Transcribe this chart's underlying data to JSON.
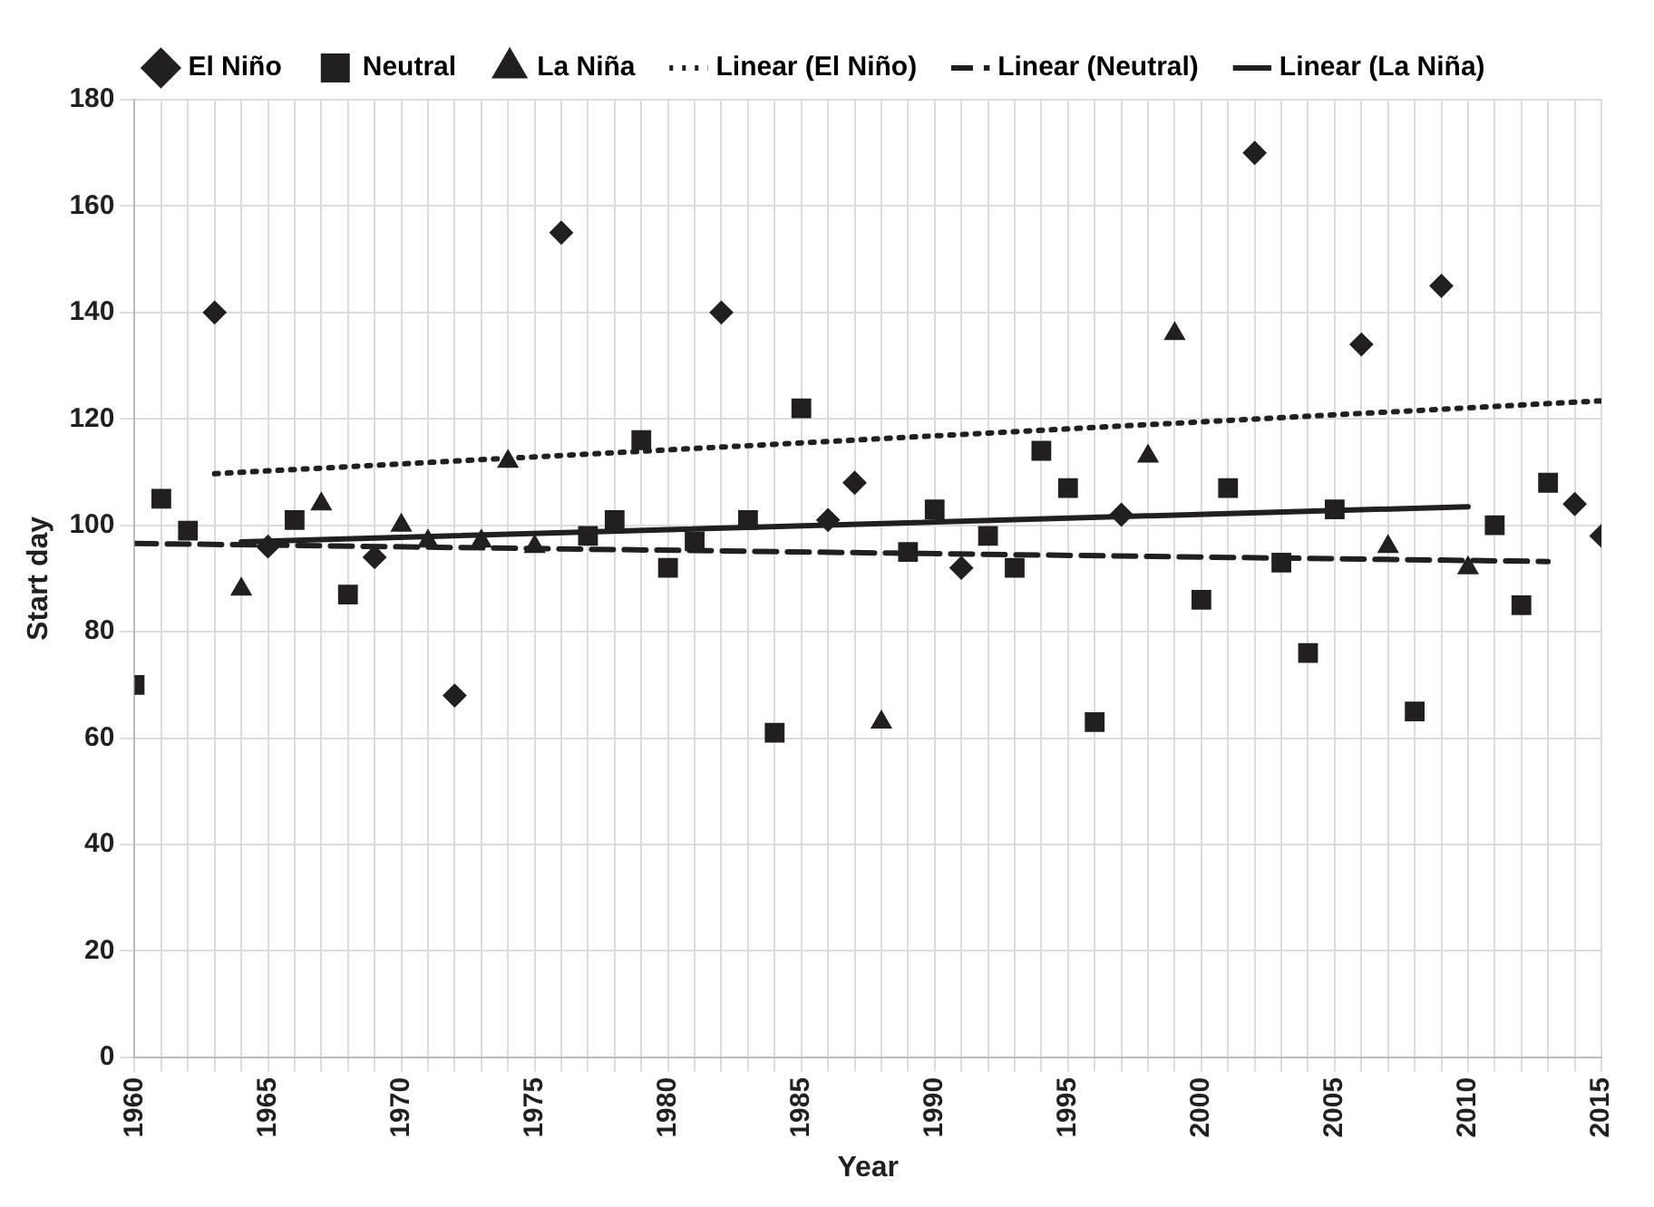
{
  "chart_data": {
    "type": "scatter",
    "xlabel": "Year",
    "ylabel": "Start day",
    "legend": "top",
    "grid": true,
    "xlim": [
      1960,
      2015
    ],
    "ylim": [
      0,
      180
    ],
    "yticks": [
      0,
      20,
      40,
      60,
      80,
      100,
      120,
      140,
      160,
      180
    ],
    "xticks": [
      1960,
      {
        "value": 1961,
        "label": null
      },
      {
        "value": 1962,
        "label": null
      },
      {
        "value": 1963,
        "label": null
      },
      {
        "value": 1964,
        "label": null
      },
      1965,
      {
        "value": 1966,
        "label": null
      },
      {
        "value": 1967,
        "label": null
      },
      {
        "value": 1968,
        "label": null
      },
      {
        "value": 1969,
        "label": null
      },
      1970,
      {
        "value": 1971,
        "label": null
      },
      {
        "value": 1972,
        "label": null
      },
      {
        "value": 1973,
        "label": null
      },
      {
        "value": 1974,
        "label": null
      },
      1975,
      {
        "value": 1976,
        "label": null
      },
      {
        "value": 1977,
        "label": null
      },
      {
        "value": 1978,
        "label": null
      },
      {
        "value": 1979,
        "label": null
      },
      1980,
      {
        "value": 1981,
        "label": null
      },
      {
        "value": 1982,
        "label": null
      },
      {
        "value": 1983,
        "label": null
      },
      {
        "value": 1984,
        "label": null
      },
      1985,
      {
        "value": 1986,
        "label": null
      },
      {
        "value": 1987,
        "label": null
      },
      {
        "value": 1988,
        "label": null
      },
      {
        "value": 1989,
        "label": null
      },
      1990,
      {
        "value": 1991,
        "label": null
      },
      {
        "value": 1992,
        "label": null
      },
      {
        "value": 1993,
        "label": null
      },
      {
        "value": 1994,
        "label": null
      },
      1995,
      {
        "value": 1996,
        "label": null
      },
      {
        "value": 1997,
        "label": null
      },
      {
        "value": 1998,
        "label": null
      },
      {
        "value": 1999,
        "label": null
      },
      2000,
      {
        "value": 2001,
        "label": null
      },
      {
        "value": 2002,
        "label": null
      },
      {
        "value": 2003,
        "label": null
      },
      {
        "value": 2004,
        "label": null
      },
      2005,
      {
        "value": 2006,
        "label": null
      },
      {
        "value": 2007,
        "label": null
      },
      {
        "value": 2008,
        "label": null
      },
      {
        "value": 2009,
        "label": null
      },
      2010,
      {
        "value": 2011,
        "label": null
      },
      {
        "value": 2012,
        "label": null
      },
      {
        "value": 2013,
        "label": null
      },
      {
        "value": 2014,
        "label": null
      },
      2015
    ],
    "series": [
      {
        "name": "El Niño",
        "type": "scatter",
        "marker": "diamond",
        "color": "#231f20",
        "x": [
          1963,
          1965,
          1969,
          1972,
          1976,
          1982,
          1986,
          1987,
          1991,
          1997,
          2002,
          2006,
          2009,
          2014,
          2015
        ],
        "values": [
          140,
          96,
          94,
          68,
          155,
          140,
          101,
          108,
          92,
          102,
          170,
          134,
          145,
          104,
          98
        ]
      },
      {
        "name": "Neutral",
        "type": "scatter",
        "marker": "square",
        "color": "#231f20",
        "x": [
          1960,
          1961,
          1962,
          1966,
          1968,
          1977,
          1978,
          1979,
          1980,
          1981,
          1983,
          1984,
          1985,
          1989,
          1990,
          1992,
          1993,
          1994,
          1995,
          1996,
          2000,
          2001,
          2003,
          2004,
          2005,
          2008,
          2011,
          2012,
          2013
        ],
        "values": [
          70,
          105,
          99,
          101,
          87,
          98,
          101,
          116,
          92,
          97,
          101,
          61,
          122,
          95,
          103,
          98,
          92,
          114,
          107,
          63,
          86,
          107,
          93,
          76,
          103,
          65,
          100,
          85,
          108
        ]
      },
      {
        "name": "La Niña",
        "type": "scatter",
        "marker": "triangle",
        "color": "#231f20",
        "x": [
          1964,
          1967,
          1970,
          1971,
          1973,
          1974,
          1975,
          1988,
          1998,
          1999,
          2007,
          2010
        ],
        "values": [
          88,
          104,
          100,
          97,
          97,
          112,
          96,
          63,
          113,
          136,
          96,
          92
        ]
      },
      {
        "name": "Linear (El Niño)",
        "type": "line",
        "marker": "none",
        "line_style": "dotted",
        "color": "#231f20",
        "x": [
          1963,
          2015
        ],
        "values": [
          109.7,
          123.4
        ]
      },
      {
        "name": "Linear (Neutral)",
        "type": "line",
        "marker": "none",
        "line_style": "dashed",
        "color": "#231f20",
        "x": [
          1960,
          2013
        ],
        "values": [
          96.6,
          93.2
        ]
      },
      {
        "name": "Linear (La Niña)",
        "type": "line",
        "marker": "none",
        "line_style": "solid",
        "color": "#231f20",
        "x": [
          1964,
          2010
        ],
        "values": [
          96.9,
          103.5
        ]
      }
    ]
  }
}
